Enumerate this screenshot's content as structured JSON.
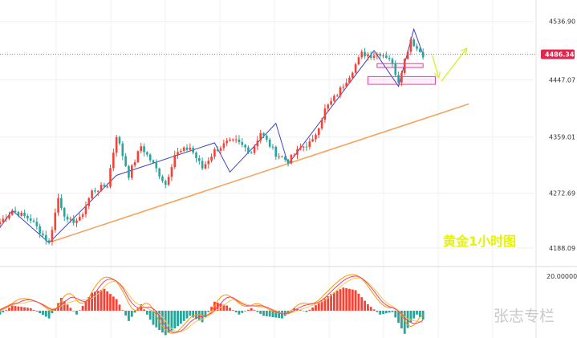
{
  "chart_data": {
    "type": "candlestick",
    "title": "黄金1小时图",
    "watermark": "张志专栏",
    "symbol": "",
    "price_axis": {
      "ticks": [
        4536.9,
        4447.07,
        4359.01,
        4272.69,
        4188.09
      ],
      "labels": [
        "4536.90",
        "4447.07",
        "4359.01",
        "4272.69",
        "4188.09"
      ],
      "ylim": [
        4162,
        4560
      ]
    },
    "current_price": {
      "value": 4486.34,
      "label": "4486.34",
      "color": "#e0284f"
    },
    "colors": {
      "up": "#f44336",
      "down": "#26a69a",
      "channel": "#3b43c8",
      "trendline": "#f4a460",
      "zone": "#e040a0",
      "arrow": "#d8ef3a",
      "macd_fast": "#ff9800",
      "macd_slow": "#f2c94c",
      "macd_signal": "#ec407a",
      "hist_up": "#f44336",
      "hist_down": "#26a69a"
    },
    "anchors": [
      {
        "i": 0,
        "p": 4228
      },
      {
        "i": 4,
        "p": 4246
      },
      {
        "i": 10,
        "p": 4232
      },
      {
        "i": 16,
        "p": 4196
      },
      {
        "i": 19,
        "p": 4265
      },
      {
        "i": 22,
        "p": 4228
      },
      {
        "i": 26,
        "p": 4232
      },
      {
        "i": 30,
        "p": 4275
      },
      {
        "i": 35,
        "p": 4285
      },
      {
        "i": 38,
        "p": 4362
      },
      {
        "i": 42,
        "p": 4300
      },
      {
        "i": 46,
        "p": 4345
      },
      {
        "i": 50,
        "p": 4317
      },
      {
        "i": 54,
        "p": 4286
      },
      {
        "i": 57,
        "p": 4332
      },
      {
        "i": 62,
        "p": 4343
      },
      {
        "i": 66,
        "p": 4311
      },
      {
        "i": 70,
        "p": 4338
      },
      {
        "i": 74,
        "p": 4350
      },
      {
        "i": 77,
        "p": 4352
      },
      {
        "i": 82,
        "p": 4336
      },
      {
        "i": 85,
        "p": 4366
      },
      {
        "i": 90,
        "p": 4333
      },
      {
        "i": 94,
        "p": 4322
      },
      {
        "i": 98,
        "p": 4342
      },
      {
        "i": 102,
        "p": 4352
      },
      {
        "i": 106,
        "p": 4401
      },
      {
        "i": 110,
        "p": 4425
      },
      {
        "i": 114,
        "p": 4454
      },
      {
        "i": 118,
        "p": 4487
      },
      {
        "i": 121,
        "p": 4485
      },
      {
        "i": 124,
        "p": 4488
      },
      {
        "i": 127,
        "p": 4481
      },
      {
        "i": 130,
        "p": 4446
      },
      {
        "i": 132,
        "p": 4478
      },
      {
        "i": 134,
        "p": 4510
      },
      {
        "i": 136,
        "p": 4495
      },
      {
        "i": 138,
        "p": 4486
      }
    ],
    "channel_points": [
      {
        "i": -3,
        "p": 4200
      },
      {
        "i": 4,
        "p": 4246
      },
      {
        "i": 16,
        "p": 4196
      },
      {
        "i": 38,
        "p": 4300
      },
      {
        "i": 70,
        "p": 4350
      },
      {
        "i": 75,
        "p": 4305
      },
      {
        "i": 90,
        "p": 4380
      },
      {
        "i": 94,
        "p": 4317
      },
      {
        "i": 122,
        "p": 4492
      },
      {
        "i": 130,
        "p": 4437
      },
      {
        "i": 135,
        "p": 4525
      },
      {
        "i": 138,
        "p": 4486
      }
    ],
    "trendline": {
      "from": {
        "i": 17,
        "p": 4198
      },
      "to": {
        "i": 153,
        "p": 4410
      }
    },
    "zones": [
      {
        "i0": 123,
        "i1": 138,
        "p0": 4466,
        "p1": 4472
      },
      {
        "i0": 120,
        "i1": 142,
        "p0": 4440,
        "p1": 4452
      }
    ],
    "arrows": [
      {
        "from": {
          "i": 141,
          "p": 4485
        },
        "to": {
          "i": 143,
          "p": 4452
        }
      },
      {
        "from": {
          "i": 144,
          "p": 4445
        },
        "to": {
          "i": 152,
          "p": 4494
        }
      }
    ],
    "macd": {
      "tick_label": "20.00000",
      "tick_value": 20,
      "anchors": [
        {
          "i": 0,
          "v": -3
        },
        {
          "i": 4,
          "v": 4
        },
        {
          "i": 10,
          "v": 2
        },
        {
          "i": 16,
          "v": -6
        },
        {
          "i": 20,
          "v": 10
        },
        {
          "i": 25,
          "v": -3
        },
        {
          "i": 30,
          "v": 14
        },
        {
          "i": 34,
          "v": 17
        },
        {
          "i": 38,
          "v": 9
        },
        {
          "i": 42,
          "v": -8
        },
        {
          "i": 46,
          "v": 5
        },
        {
          "i": 50,
          "v": -11
        },
        {
          "i": 54,
          "v": -19
        },
        {
          "i": 58,
          "v": -12
        },
        {
          "i": 62,
          "v": -4
        },
        {
          "i": 66,
          "v": -9
        },
        {
          "i": 70,
          "v": 7
        },
        {
          "i": 74,
          "v": 4
        },
        {
          "i": 78,
          "v": -3
        },
        {
          "i": 82,
          "v": 2
        },
        {
          "i": 86,
          "v": -4
        },
        {
          "i": 92,
          "v": -6
        },
        {
          "i": 96,
          "v": 2
        },
        {
          "i": 100,
          "v": -1
        },
        {
          "i": 104,
          "v": 6
        },
        {
          "i": 108,
          "v": 13
        },
        {
          "i": 112,
          "v": 18
        },
        {
          "i": 116,
          "v": 16
        },
        {
          "i": 120,
          "v": 5
        },
        {
          "i": 124,
          "v": -3
        },
        {
          "i": 128,
          "v": -1
        },
        {
          "i": 132,
          "v": -18
        },
        {
          "i": 134,
          "v": -9
        },
        {
          "i": 136,
          "v": -3
        },
        {
          "i": 138,
          "v": -7
        }
      ]
    }
  }
}
